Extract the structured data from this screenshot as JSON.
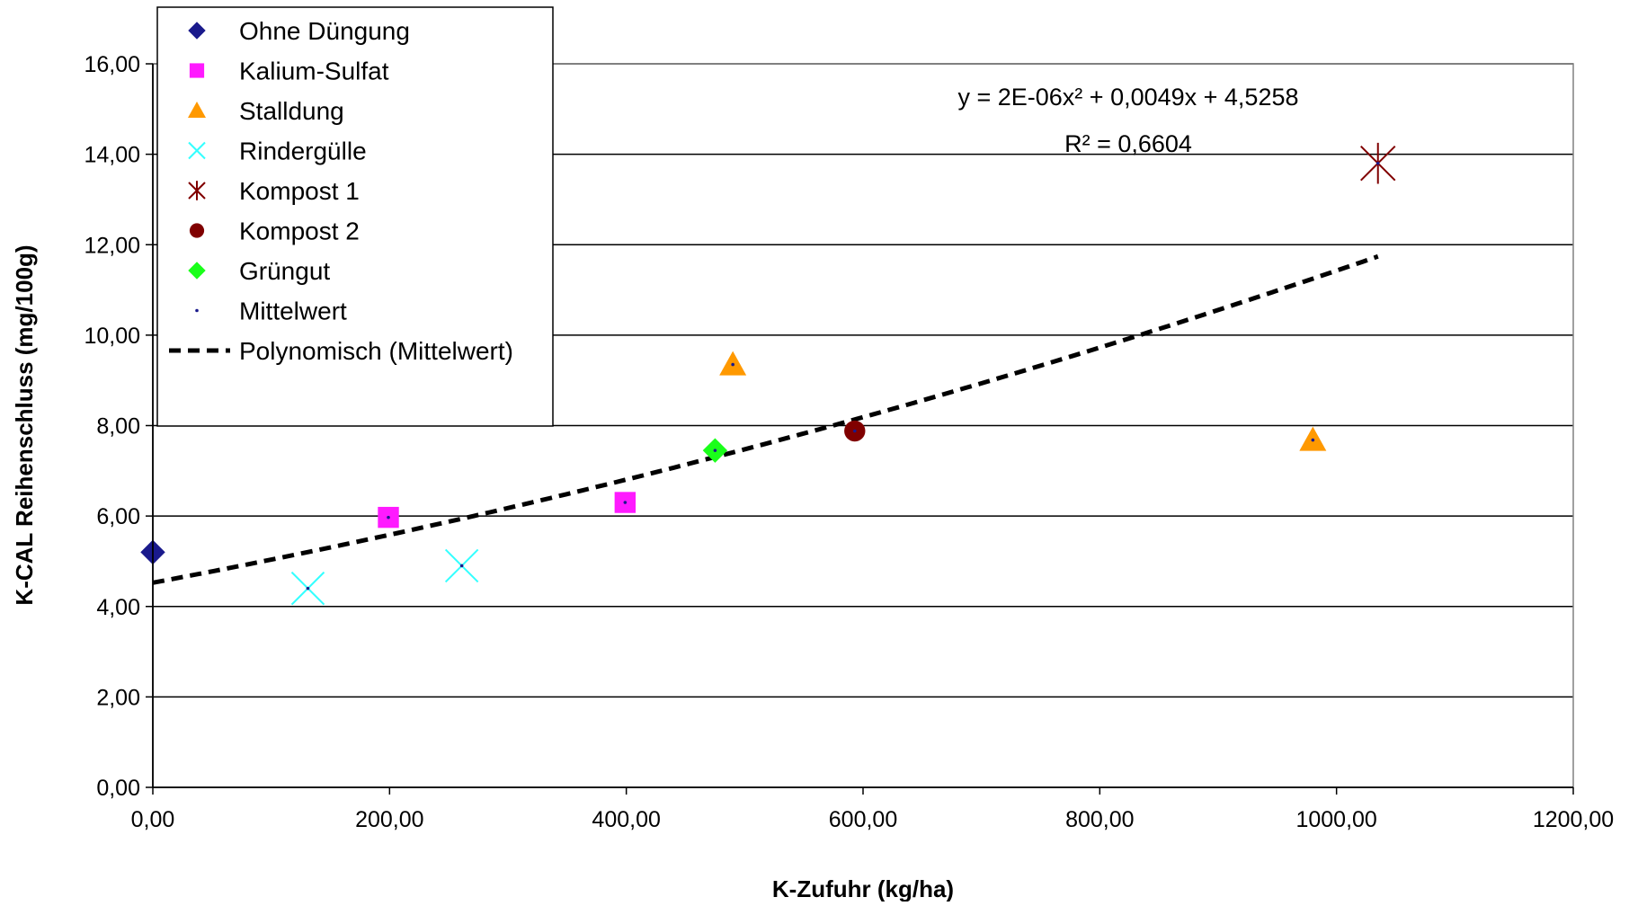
{
  "chart_data": {
    "type": "scatter",
    "xlabel": "K-Zufuhr (kg/ha)",
    "ylabel": "K-CAL Reihenschluss (mg/100g)",
    "xlim": [
      0,
      1200
    ],
    "ylim": [
      0,
      16
    ],
    "x_ticks": [
      "0,00",
      "200,00",
      "400,00",
      "600,00",
      "800,00",
      "1000,00",
      "1200,00"
    ],
    "y_ticks": [
      "0,00",
      "2,00",
      "4,00",
      "6,00",
      "8,00",
      "10,00",
      "12,00",
      "14,00",
      "16,00"
    ],
    "grid": "horizontal",
    "legend_position": "top-left",
    "series": [
      {
        "name": "Ohne Düngung",
        "marker": "diamond",
        "color": "#1a1a8c",
        "points": [
          {
            "x": 0,
            "y": 5.2
          }
        ]
      },
      {
        "name": "Kalium-Sulfat",
        "marker": "square",
        "color": "#ff1aff",
        "points": [
          {
            "x": 199,
            "y": 5.97
          },
          {
            "x": 399,
            "y": 6.3
          }
        ]
      },
      {
        "name": "Stalldung",
        "marker": "triangle",
        "color": "#ff9900",
        "points": [
          {
            "x": 490,
            "y": 9.35
          },
          {
            "x": 980,
            "y": 7.68
          }
        ]
      },
      {
        "name": "Rindergülle",
        "marker": "x",
        "color": "#33ffff",
        "points": [
          {
            "x": 131,
            "y": 4.4
          },
          {
            "x": 261,
            "y": 4.9
          }
        ]
      },
      {
        "name": "Kompost 1",
        "marker": "asterisk",
        "color": "#800000",
        "points": [
          {
            "x": 1035,
            "y": 13.8
          }
        ]
      },
      {
        "name": "Kompost 2",
        "marker": "circle",
        "color": "#800000",
        "points": [
          {
            "x": 593,
            "y": 7.88
          }
        ]
      },
      {
        "name": "Grüngut",
        "marker": "diamond",
        "color": "#1aff1a",
        "points": [
          {
            "x": 475,
            "y": 7.45
          }
        ]
      },
      {
        "name": "Mittelwert",
        "marker": "dot",
        "color": "#1a1a8c",
        "points": [
          {
            "x": 0,
            "y": 5.2
          },
          {
            "x": 131,
            "y": 4.4
          },
          {
            "x": 199,
            "y": 5.97
          },
          {
            "x": 261,
            "y": 4.9
          },
          {
            "x": 399,
            "y": 6.3
          },
          {
            "x": 475,
            "y": 7.45
          },
          {
            "x": 490,
            "y": 9.35
          },
          {
            "x": 593,
            "y": 7.88
          },
          {
            "x": 980,
            "y": 7.68
          },
          {
            "x": 1035,
            "y": 13.8
          }
        ]
      }
    ],
    "trendline": {
      "name": "Polynomisch (Mittelwert)",
      "type": "polynomial",
      "coefficients": {
        "a": 2e-06,
        "b": 0.0049,
        "c": 4.5258
      },
      "x_range": [
        0,
        1035
      ],
      "equation_text": "y = 2E-06x² + 0,0049x + 4,5258",
      "r2_text": "R² = 0,6604"
    }
  }
}
